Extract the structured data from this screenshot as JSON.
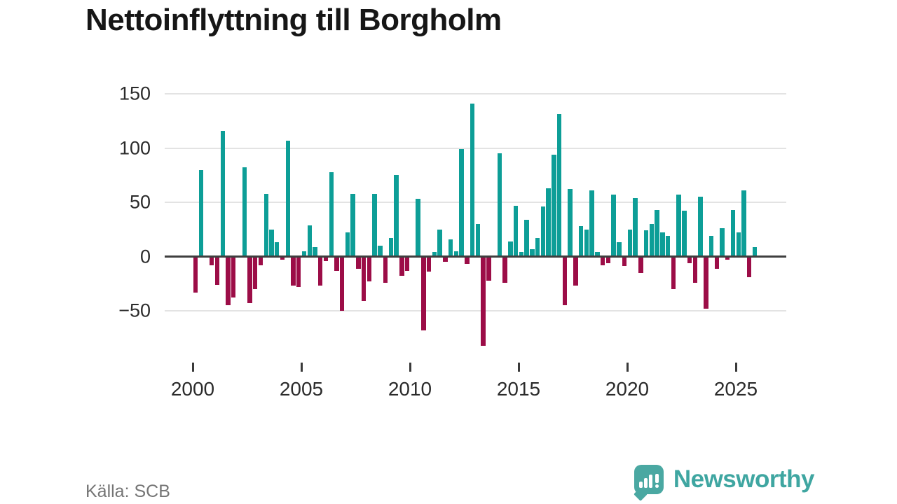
{
  "title": "Nettoinflyttning till Borgholm",
  "source": "Källa: SCB",
  "branding": {
    "name": "Newsworthy"
  },
  "colors": {
    "positive": "#0d9e97",
    "negative": "#9c0d47",
    "grid": "#e3e3e3",
    "zero_line": "#3f3f3f",
    "title_text": "#161616",
    "axis_text": "#2b2b2b",
    "source_text": "#757575",
    "brand": "#3fa6a1",
    "background": "#ffffff"
  },
  "chart_data": {
    "type": "bar",
    "title": "Nettoinflyttning till Borgholm",
    "xlabel": "",
    "ylabel": "",
    "frequency": "quarterly",
    "start_period": "2000 Q1",
    "end_period": "2025 Q4",
    "ylim": [
      -90,
      160
    ],
    "grid": true,
    "y_ticks": [
      150,
      100,
      50,
      0,
      -50
    ],
    "y_tick_labels": [
      "150",
      "100",
      "50",
      "0",
      "−50"
    ],
    "x_tick_labels": [
      "2000",
      "2005",
      "2010",
      "2015",
      "2020",
      "2025"
    ],
    "series": [
      {
        "name": "Nettoinflyttning",
        "points": [
          {
            "period": "2000 Q1",
            "value": -33
          },
          {
            "period": "2000 Q2",
            "value": 80
          },
          {
            "period": "2000 Q3",
            "value": 0
          },
          {
            "period": "2000 Q4",
            "value": -8
          },
          {
            "period": "2001 Q1",
            "value": -26
          },
          {
            "period": "2001 Q2",
            "value": 116
          },
          {
            "period": "2001 Q3",
            "value": -45
          },
          {
            "period": "2001 Q4",
            "value": -38
          },
          {
            "period": "2002 Q1",
            "value": 0
          },
          {
            "period": "2002 Q2",
            "value": 82
          },
          {
            "period": "2002 Q3",
            "value": -43
          },
          {
            "period": "2002 Q4",
            "value": -30
          },
          {
            "period": "2003 Q1",
            "value": -8
          },
          {
            "period": "2003 Q2",
            "value": 58
          },
          {
            "period": "2003 Q3",
            "value": 25
          },
          {
            "period": "2003 Q4",
            "value": 13
          },
          {
            "period": "2004 Q1",
            "value": -3
          },
          {
            "period": "2004 Q2",
            "value": 107
          },
          {
            "period": "2004 Q3",
            "value": -27
          },
          {
            "period": "2004 Q4",
            "value": -28
          },
          {
            "period": "2005 Q1",
            "value": 5
          },
          {
            "period": "2005 Q2",
            "value": 29
          },
          {
            "period": "2005 Q3",
            "value": 9
          },
          {
            "period": "2005 Q4",
            "value": -27
          },
          {
            "period": "2006 Q1",
            "value": -4
          },
          {
            "period": "2006 Q2",
            "value": 78
          },
          {
            "period": "2006 Q3",
            "value": -13
          },
          {
            "period": "2006 Q4",
            "value": -50
          },
          {
            "period": "2007 Q1",
            "value": 22
          },
          {
            "period": "2007 Q2",
            "value": 58
          },
          {
            "period": "2007 Q3",
            "value": -11
          },
          {
            "period": "2007 Q4",
            "value": -41
          },
          {
            "period": "2008 Q1",
            "value": -23
          },
          {
            "period": "2008 Q2",
            "value": 58
          },
          {
            "period": "2008 Q3",
            "value": 10
          },
          {
            "period": "2008 Q4",
            "value": -24
          },
          {
            "period": "2009 Q1",
            "value": 17
          },
          {
            "period": "2009 Q2",
            "value": 75
          },
          {
            "period": "2009 Q3",
            "value": -18
          },
          {
            "period": "2009 Q4",
            "value": -13
          },
          {
            "period": "2010 Q1",
            "value": 0
          },
          {
            "period": "2010 Q2",
            "value": 53
          },
          {
            "period": "2010 Q3",
            "value": -68
          },
          {
            "period": "2010 Q4",
            "value": -14
          },
          {
            "period": "2011 Q1",
            "value": 4
          },
          {
            "period": "2011 Q2",
            "value": 25
          },
          {
            "period": "2011 Q3",
            "value": -5
          },
          {
            "period": "2011 Q4",
            "value": 16
          },
          {
            "period": "2012 Q1",
            "value": 5
          },
          {
            "period": "2012 Q2",
            "value": 99
          },
          {
            "period": "2012 Q3",
            "value": -7
          },
          {
            "period": "2012 Q4",
            "value": 141
          },
          {
            "period": "2013 Q1",
            "value": 30
          },
          {
            "period": "2013 Q2",
            "value": -82
          },
          {
            "period": "2013 Q3",
            "value": -22
          },
          {
            "period": "2013 Q4",
            "value": 0
          },
          {
            "period": "2014 Q1",
            "value": 95
          },
          {
            "period": "2014 Q2",
            "value": -24
          },
          {
            "period": "2014 Q3",
            "value": 14
          },
          {
            "period": "2014 Q4",
            "value": 47
          },
          {
            "period": "2015 Q1",
            "value": 4
          },
          {
            "period": "2015 Q2",
            "value": 34
          },
          {
            "period": "2015 Q3",
            "value": 7
          },
          {
            "period": "2015 Q4",
            "value": 17
          },
          {
            "period": "2016 Q1",
            "value": 46
          },
          {
            "period": "2016 Q2",
            "value": 63
          },
          {
            "period": "2016 Q3",
            "value": 94
          },
          {
            "period": "2016 Q4",
            "value": 131
          },
          {
            "period": "2017 Q1",
            "value": -45
          },
          {
            "period": "2017 Q2",
            "value": 62
          },
          {
            "period": "2017 Q3",
            "value": -27
          },
          {
            "period": "2017 Q4",
            "value": 28
          },
          {
            "period": "2018 Q1",
            "value": 25
          },
          {
            "period": "2018 Q2",
            "value": 61
          },
          {
            "period": "2018 Q3",
            "value": 4
          },
          {
            "period": "2018 Q4",
            "value": -8
          },
          {
            "period": "2019 Q1",
            "value": -6
          },
          {
            "period": "2019 Q2",
            "value": 57
          },
          {
            "period": "2019 Q3",
            "value": 13
          },
          {
            "period": "2019 Q4",
            "value": -9
          },
          {
            "period": "2020 Q1",
            "value": 25
          },
          {
            "period": "2020 Q2",
            "value": 54
          },
          {
            "period": "2020 Q3",
            "value": -15
          },
          {
            "period": "2020 Q4",
            "value": 24
          },
          {
            "period": "2021 Q1",
            "value": 30
          },
          {
            "period": "2021 Q2",
            "value": 43
          },
          {
            "period": "2021 Q3",
            "value": 22
          },
          {
            "period": "2021 Q4",
            "value": 19
          },
          {
            "period": "2022 Q1",
            "value": -30
          },
          {
            "period": "2022 Q2",
            "value": 57
          },
          {
            "period": "2022 Q3",
            "value": 42
          },
          {
            "period": "2022 Q4",
            "value": -6
          },
          {
            "period": "2023 Q1",
            "value": -24
          },
          {
            "period": "2023 Q2",
            "value": 55
          },
          {
            "period": "2023 Q3",
            "value": -48
          },
          {
            "period": "2023 Q4",
            "value": 19
          },
          {
            "period": "2024 Q1",
            "value": -11
          },
          {
            "period": "2024 Q2",
            "value": 26
          },
          {
            "period": "2024 Q3",
            "value": -3
          },
          {
            "period": "2024 Q4",
            "value": 43
          },
          {
            "period": "2025 Q1",
            "value": 22
          },
          {
            "period": "2025 Q2",
            "value": 61
          },
          {
            "period": "2025 Q3",
            "value": -19
          },
          {
            "period": "2025 Q4",
            "value": 9
          }
        ]
      }
    ]
  }
}
